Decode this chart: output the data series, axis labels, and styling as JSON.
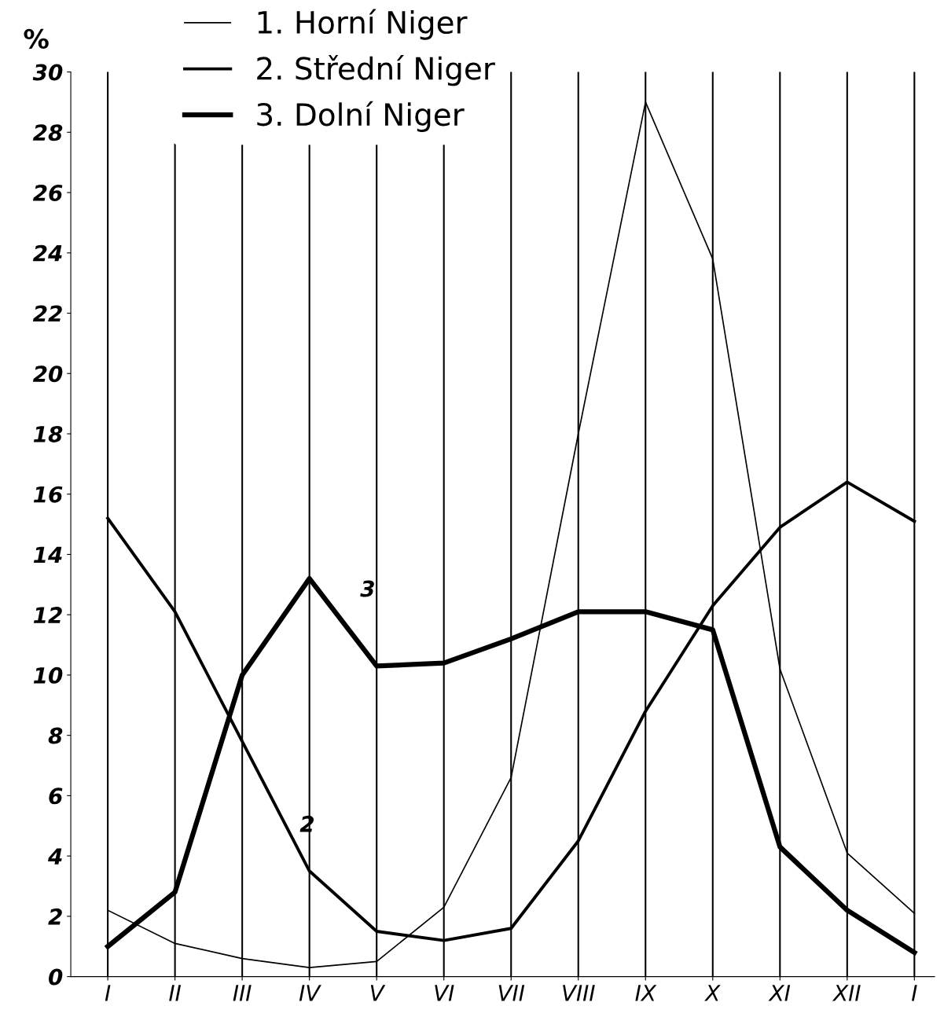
{
  "chart_data": {
    "type": "line",
    "categories": [
      "I",
      "II",
      "III",
      "IV",
      "V",
      "VI",
      "VII",
      "VIII",
      "IX",
      "X",
      "XI",
      "XII",
      "I"
    ],
    "ylabel": "%",
    "ylim": [
      0,
      30
    ],
    "yticks": [
      0,
      2,
      4,
      6,
      8,
      10,
      12,
      14,
      16,
      18,
      20,
      22,
      24,
      26,
      28,
      30
    ],
    "grid": "x",
    "legend": "top left",
    "marker": "none",
    "line_style": "solid",
    "series": [
      {
        "name": "1. Horní Niger",
        "color": "#000000",
        "values": [
          2.2,
          1.1,
          0.6,
          0.3,
          0.5,
          2.3,
          6.6,
          18.0,
          29.0,
          23.8,
          10.2,
          4.1,
          2.1
        ]
      },
      {
        "name": "2. Střední Niger",
        "color": "#000000",
        "values": [
          15.2,
          12.1,
          7.8,
          3.5,
          1.5,
          1.2,
          1.6,
          4.5,
          8.8,
          12.3,
          14.9,
          16.4,
          15.1
        ]
      },
      {
        "name": "3. Dolní Niger",
        "color": "#000000",
        "values": [
          1.0,
          2.8,
          10.0,
          13.2,
          10.3,
          10.4,
          11.2,
          12.1,
          12.1,
          11.5,
          4.3,
          2.2,
          0.8
        ]
      }
    ],
    "annotations": [
      "2",
      "3"
    ]
  }
}
